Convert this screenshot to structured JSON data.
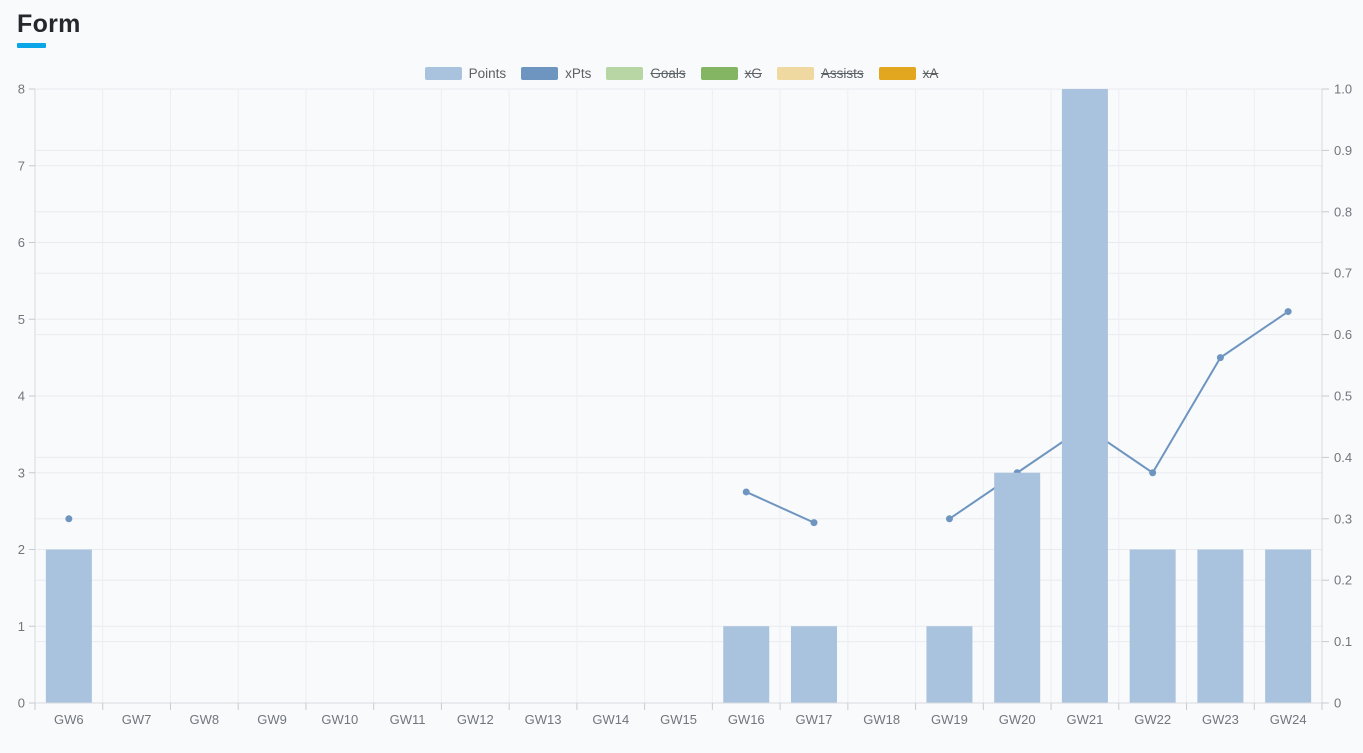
{
  "page": {
    "title": "Form",
    "accent_color": "#0aa6e8",
    "background_color": "#f9fafb"
  },
  "legend": {
    "items": [
      {
        "label": "Points",
        "color": "#a9c3de",
        "disabled": false
      },
      {
        "label": "xPts",
        "color": "#6e95c0",
        "disabled": false
      },
      {
        "label": "Goals",
        "color": "#b7d6a4",
        "disabled": true
      },
      {
        "label": "xG",
        "color": "#84b562",
        "disabled": true
      },
      {
        "label": "Assists",
        "color": "#f0d9a1",
        "disabled": true
      },
      {
        "label": "xA",
        "color": "#e2a61f",
        "disabled": true
      }
    ]
  },
  "chart_data": {
    "type": "bar",
    "title": "Form",
    "categories": [
      "GW6",
      "GW7",
      "GW8",
      "GW9",
      "GW10",
      "GW11",
      "GW12",
      "GW13",
      "GW14",
      "GW15",
      "GW16",
      "GW17",
      "GW18",
      "GW19",
      "GW20",
      "GW21",
      "GW22",
      "GW23",
      "GW24"
    ],
    "series": [
      {
        "name": "Points",
        "type": "bar",
        "axis": "left",
        "color": "#a9c3de",
        "values": [
          2,
          0,
          0,
          0,
          0,
          0,
          0,
          0,
          0,
          0,
          1,
          1,
          0,
          1,
          3,
          8,
          2,
          2,
          2
        ]
      },
      {
        "name": "xPts",
        "type": "line",
        "axis": "left",
        "color": "#6e95c0",
        "values": [
          2.4,
          null,
          null,
          null,
          null,
          null,
          null,
          null,
          null,
          null,
          2.75,
          2.35,
          null,
          2.4,
          3,
          3.6,
          3,
          4.5,
          5.1
        ]
      }
    ],
    "left_axis": {
      "min": 0,
      "max": 8,
      "ticks": [
        0,
        1,
        2,
        3,
        4,
        5,
        6,
        7,
        8
      ],
      "labels": [
        "0",
        "1",
        "2",
        "3",
        "4",
        "5",
        "6",
        "7",
        "8"
      ]
    },
    "right_axis": {
      "min": 0,
      "max": 1,
      "ticks": [
        0,
        0.1,
        0.2,
        0.3,
        0.4,
        0.5,
        0.6,
        0.7,
        0.8,
        0.9,
        1
      ],
      "labels": [
        "0",
        "0.1",
        "0.2",
        "0.3",
        "0.4",
        "0.5",
        "0.6",
        "0.7",
        "0.8",
        "0.9",
        "1.0"
      ]
    },
    "grid": true,
    "legend_position": "top",
    "colors": {
      "grid_line": "#e9ebef",
      "grid_line_vertical": "#eceef2",
      "axis_line": "#d8dbe0",
      "tick": "#c6cbd2",
      "label": "#71767e"
    }
  }
}
